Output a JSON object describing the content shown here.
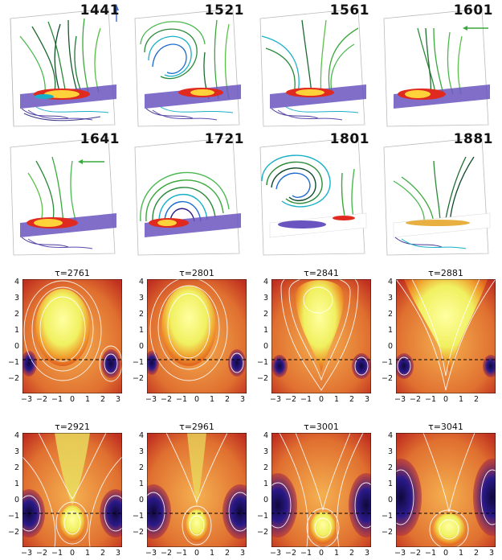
{
  "panels_3d": [
    {
      "label": "1441"
    },
    {
      "label": "1521"
    },
    {
      "label": "1561"
    },
    {
      "label": "1601"
    },
    {
      "label": "1641"
    },
    {
      "label": "1721"
    },
    {
      "label": "1801"
    },
    {
      "label": "1881"
    }
  ],
  "panels_2d": [
    {
      "title": "τ=2761"
    },
    {
      "title": "τ=2801"
    },
    {
      "title": "τ=2841"
    },
    {
      "title": "τ=2881"
    },
    {
      "title": "τ=2921"
    },
    {
      "title": "τ=2961"
    },
    {
      "title": "τ=3001"
    },
    {
      "title": "τ=3041"
    }
  ],
  "y_ticks": [
    "4",
    "3",
    "2",
    "1",
    "0",
    "−1",
    "−2"
  ],
  "x_ticks": [
    "−3",
    "−2",
    "−1",
    "0",
    "1",
    "2",
    "3"
  ],
  "x_ticks_last_top": [
    "−3",
    "−2",
    "−1",
    "0",
    "1",
    "2"
  ],
  "colors": {
    "field_green": "#3aa83a",
    "field_dark": "#0f4a2a",
    "field_cyan": "#19b0c8",
    "field_purple": "#4a3a9a",
    "hot_yellow": "#ffff80",
    "hot_red": "#d42a10",
    "cold_blue": "#2a1a8a"
  }
}
